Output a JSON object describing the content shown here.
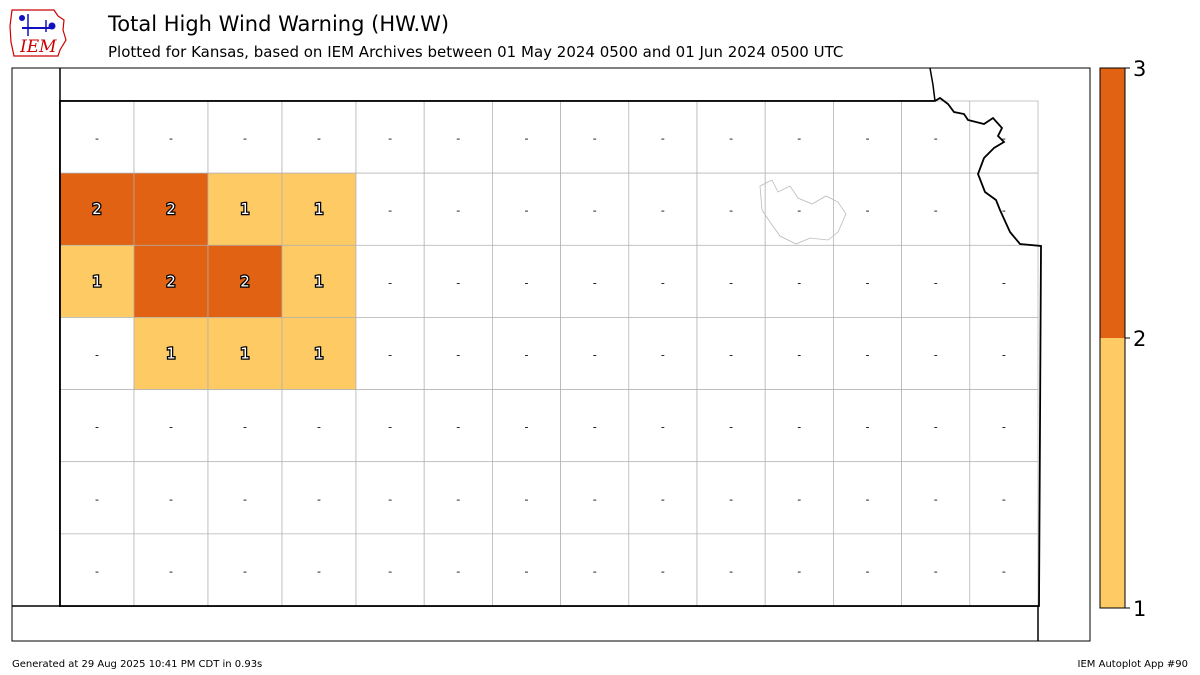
{
  "header": {
    "title": "Total High Wind Warning (HW.W)",
    "subtitle": "Plotted for Kansas, based on IEM Archives  between 01 May 2024 0500 and 01 Jun 2024 0500 UTC"
  },
  "logo": {
    "text": "IEM",
    "color": "#cc0000",
    "icon_color": "#1010c0"
  },
  "footer": {
    "generated": "Generated at 29 Aug 2025 10:41 PM CDT in 0.93s",
    "app": "IEM Autoplot App #90"
  },
  "colorbar": {
    "ticks": [
      "1",
      "2",
      "3"
    ],
    "bins": [
      {
        "from": 1,
        "to": 2,
        "color": "#fdca64"
      },
      {
        "from": 2,
        "to": 3,
        "color": "#e16212"
      }
    ]
  },
  "map": {
    "empty_label": "-",
    "county_rows": [
      [
        "-",
        "-",
        "-",
        "-",
        "-",
        "-",
        "-",
        "-",
        "-",
        "-",
        "-",
        "-",
        "-",
        "-"
      ],
      [
        "2",
        "2",
        "1",
        "1",
        "-",
        "-",
        "-",
        "-",
        "-",
        "-",
        "-",
        "-",
        "-",
        "-"
      ],
      [
        "1",
        "2",
        "2",
        "1",
        "-",
        "-",
        "-",
        "-",
        "-",
        "-",
        "-",
        "-",
        "-",
        "-"
      ],
      [
        "-",
        "1",
        "1",
        "1",
        "-",
        "-",
        "-",
        "-",
        "-",
        "-",
        "-",
        "-",
        "-",
        "-"
      ],
      [
        "-",
        "-",
        "-",
        "-",
        "-",
        "-",
        "-",
        "-",
        "-",
        "-",
        "-",
        "-",
        "-",
        "-"
      ],
      [
        "-",
        "-",
        "-",
        "-",
        "-",
        "-",
        "-",
        "-",
        "-",
        "-",
        "-",
        "-",
        "-",
        "-"
      ],
      [
        "-",
        "-",
        "-",
        "-",
        "-",
        "-",
        "-",
        "-",
        "-",
        "-",
        "-",
        "-",
        "-",
        "-"
      ]
    ]
  }
}
